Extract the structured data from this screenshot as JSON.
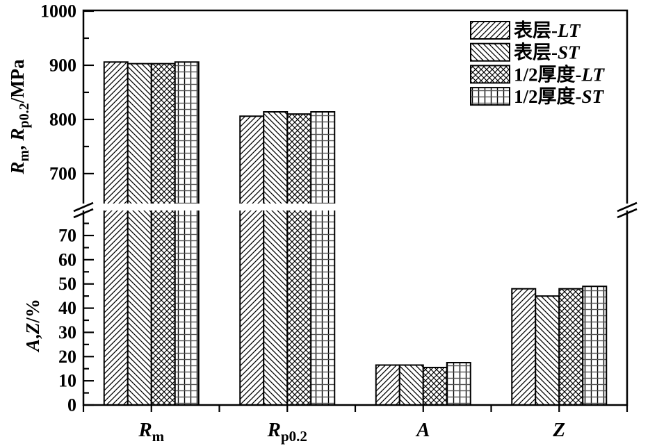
{
  "chart_data": {
    "type": "bar",
    "title": "",
    "description": "Grouped bar chart with broken y-axis: tensile properties (Rm, Rp0.2 in MPa; A, Z in %) at surface (表层) and half-thickness (1/2厚度) in LT and ST directions",
    "categories": [
      {
        "label_main": "R",
        "label_sub": "m"
      },
      {
        "label_main": "R",
        "label_sub": "p0.2"
      },
      {
        "label_main": "A",
        "label_sub": ""
      },
      {
        "label_main": "Z",
        "label_sub": ""
      }
    ],
    "series": [
      {
        "name": "表层-LT",
        "hatch": "forward-diagonal",
        "values": [
          906,
          806,
          16.5,
          48
        ]
      },
      {
        "name": "表层-ST",
        "hatch": "backward-diagonal",
        "values": [
          903,
          814,
          16.5,
          45
        ]
      },
      {
        "name": "1/2厚度-LT",
        "hatch": "crosshatch",
        "values": [
          903,
          810,
          15.5,
          48
        ]
      },
      {
        "name": "1/2厚度-ST",
        "hatch": "grid",
        "values": [
          906,
          814,
          17.5,
          49
        ]
      }
    ],
    "y_axis_top": {
      "label_parts": [
        {
          "text": "R",
          "style": "italic"
        },
        {
          "text": "m",
          "style": "sub"
        },
        {
          "text": ", ",
          "style": "normal"
        },
        {
          "text": "R",
          "style": "italic"
        },
        {
          "text": "p0.2",
          "style": "sub"
        },
        {
          "text": "/MPa",
          "style": "normal"
        }
      ],
      "unit": "MPa",
      "major_ticks": [
        700,
        800,
        900,
        1000
      ],
      "minor_ticks": [
        750,
        850,
        950
      ],
      "range": [
        646,
        1000
      ]
    },
    "y_axis_bottom": {
      "label_parts": [
        {
          "text": "A",
          "style": "italic"
        },
        {
          "text": ",",
          "style": "normal"
        },
        {
          "text": "Z",
          "style": "italic"
        },
        {
          "text": "/%",
          "style": "normal"
        }
      ],
      "unit": "%",
      "major_ticks": [
        0,
        10,
        20,
        30,
        40,
        50,
        60,
        70
      ],
      "minor_ticks": [
        5,
        15,
        25,
        35,
        45,
        55,
        65,
        75
      ],
      "range": [
        0,
        80.3
      ]
    },
    "axis_break": true,
    "grid": false,
    "legend_position": "top-right",
    "colors": {
      "foreground": "#000000",
      "background": "#ffffff"
    }
  }
}
